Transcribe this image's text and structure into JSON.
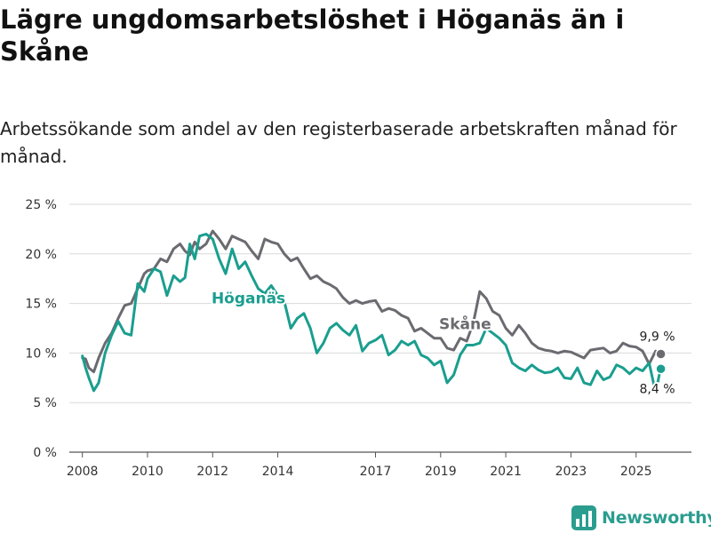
{
  "title": "Lägre ungdomsarbetslöshet i Höganäs än i Skåne",
  "subtitle": "Arbetssökande som andel av den registerbaserade arbetskraften månad för månad.",
  "brand": {
    "name": "Newsworthy",
    "color": "#2a9d8f",
    "icon": "newsworthy-logo-icon"
  },
  "chart_data": {
    "type": "line",
    "title": "Lägre ungdomsarbetslöshet i Höganäs än i Skåne",
    "xlabel": "",
    "ylabel": "",
    "ylim": [
      0,
      25
    ],
    "yticks": [
      0,
      5,
      10,
      15,
      20,
      25
    ],
    "ytick_labels": [
      "0 %",
      "5 %",
      "10 %",
      "15 %",
      "20 %",
      "25 %"
    ],
    "xlim": [
      2007.6,
      2026.7
    ],
    "xticks": [
      2008,
      2010,
      2012,
      2014,
      2017,
      2019,
      2021,
      2023,
      2025
    ],
    "xtick_labels": [
      "2008",
      "2010",
      "2012",
      "2014",
      "2017",
      "2019",
      "2021",
      "2023",
      "2025"
    ],
    "grid": true,
    "series": [
      {
        "name": "Skåne",
        "label": "Skåne",
        "color": "#6b6a70",
        "end_label": "9,9 %",
        "end_value": 9.9,
        "x": [
          2008.0,
          2008.1,
          2008.2,
          2008.35,
          2008.5,
          2008.7,
          2008.9,
          2009.1,
          2009.3,
          2009.5,
          2009.7,
          2009.9,
          2010.0,
          2010.2,
          2010.4,
          2010.6,
          2010.8,
          2011.0,
          2011.15,
          2011.3,
          2011.45,
          2011.6,
          2011.8,
          2012.0,
          2012.2,
          2012.4,
          2012.6,
          2012.8,
          2013.0,
          2013.2,
          2013.4,
          2013.6,
          2013.8,
          2014.0,
          2014.2,
          2014.4,
          2014.6,
          2014.8,
          2015.0,
          2015.2,
          2015.4,
          2015.6,
          2015.8,
          2016.0,
          2016.2,
          2016.4,
          2016.6,
          2016.8,
          2017.0,
          2017.2,
          2017.4,
          2017.6,
          2017.8,
          2018.0,
          2018.2,
          2018.4,
          2018.6,
          2018.8,
          2019.0,
          2019.2,
          2019.4,
          2019.6,
          2019.8,
          2020.0,
          2020.2,
          2020.4,
          2020.6,
          2020.8,
          2021.0,
          2021.2,
          2021.4,
          2021.6,
          2021.8,
          2022.0,
          2022.2,
          2022.4,
          2022.6,
          2022.8,
          2023.0,
          2023.2,
          2023.4,
          2023.6,
          2023.8,
          2024.0,
          2024.2,
          2024.4,
          2024.6,
          2024.8,
          2025.0,
          2025.2,
          2025.4,
          2025.6,
          2025.75
        ],
        "values": [
          9.5,
          9.4,
          8.5,
          8.1,
          9.5,
          11.0,
          12.0,
          13.5,
          14.8,
          15.0,
          16.5,
          18.0,
          18.3,
          18.5,
          19.5,
          19.2,
          20.5,
          21.0,
          20.3,
          19.9,
          21.2,
          20.5,
          21.0,
          22.3,
          21.5,
          20.5,
          21.8,
          21.5,
          21.2,
          20.3,
          19.5,
          21.5,
          21.2,
          21.0,
          20.0,
          19.3,
          19.6,
          18.5,
          17.5,
          17.8,
          17.2,
          16.9,
          16.5,
          15.6,
          15.0,
          15.3,
          15.0,
          15.2,
          15.3,
          14.2,
          14.5,
          14.3,
          13.8,
          13.5,
          12.2,
          12.5,
          12.0,
          11.5,
          11.5,
          10.5,
          10.3,
          11.5,
          11.2,
          13.0,
          16.2,
          15.5,
          14.2,
          13.8,
          12.5,
          11.8,
          12.8,
          12.0,
          11.0,
          10.5,
          10.3,
          10.2,
          10.0,
          10.2,
          10.1,
          9.8,
          9.5,
          10.3,
          10.4,
          10.5,
          10.0,
          10.2,
          11.0,
          10.7,
          10.6,
          10.2,
          8.9,
          10.2,
          9.9
        ]
      },
      {
        "name": "Höganäs",
        "label": "Höganäs",
        "color": "#1a9e8f",
        "end_label": "8,4 %",
        "end_value": 8.4,
        "x": [
          2008.0,
          2008.1,
          2008.2,
          2008.35,
          2008.5,
          2008.7,
          2008.9,
          2009.1,
          2009.3,
          2009.5,
          2009.7,
          2009.9,
          2010.0,
          2010.2,
          2010.4,
          2010.6,
          2010.8,
          2011.0,
          2011.15,
          2011.3,
          2011.45,
          2011.6,
          2011.8,
          2012.0,
          2012.2,
          2012.4,
          2012.6,
          2012.8,
          2013.0,
          2013.2,
          2013.4,
          2013.6,
          2013.8,
          2014.0,
          2014.2,
          2014.4,
          2014.6,
          2014.8,
          2015.0,
          2015.2,
          2015.4,
          2015.6,
          2015.8,
          2016.0,
          2016.2,
          2016.4,
          2016.6,
          2016.8,
          2017.0,
          2017.2,
          2017.4,
          2017.6,
          2017.8,
          2018.0,
          2018.2,
          2018.4,
          2018.6,
          2018.8,
          2019.0,
          2019.2,
          2019.4,
          2019.6,
          2019.8,
          2020.0,
          2020.2,
          2020.4,
          2020.6,
          2020.8,
          2021.0,
          2021.2,
          2021.4,
          2021.6,
          2021.8,
          2022.0,
          2022.2,
          2022.4,
          2022.6,
          2022.8,
          2023.0,
          2023.2,
          2023.4,
          2023.6,
          2023.8,
          2024.0,
          2024.2,
          2024.4,
          2024.6,
          2024.8,
          2025.0,
          2025.2,
          2025.4,
          2025.6,
          2025.75
        ],
        "values": [
          9.7,
          8.5,
          7.5,
          6.2,
          7.0,
          10.0,
          11.8,
          13.2,
          12.0,
          11.8,
          17.0,
          16.2,
          17.5,
          18.5,
          18.2,
          15.8,
          17.8,
          17.2,
          17.6,
          21.0,
          19.5,
          21.8,
          22.0,
          21.5,
          19.5,
          18.0,
          20.5,
          18.5,
          19.2,
          17.8,
          16.5,
          16.0,
          16.8,
          15.8,
          15.2,
          12.5,
          13.5,
          14.0,
          12.5,
          10.0,
          11.0,
          12.5,
          13.0,
          12.3,
          11.8,
          12.8,
          10.2,
          11.0,
          11.3,
          11.8,
          9.8,
          10.3,
          11.2,
          10.8,
          11.2,
          9.8,
          9.5,
          8.8,
          9.2,
          7.0,
          7.8,
          9.8,
          10.8,
          10.8,
          11.0,
          12.5,
          12.0,
          11.5,
          10.8,
          9.0,
          8.5,
          8.2,
          8.8,
          8.3,
          8.0,
          8.1,
          8.5,
          7.5,
          7.4,
          8.5,
          7.0,
          6.8,
          8.2,
          7.3,
          7.6,
          8.8,
          8.5,
          7.9,
          8.5,
          8.2,
          9.0,
          6.0,
          8.4
        ]
      }
    ]
  }
}
